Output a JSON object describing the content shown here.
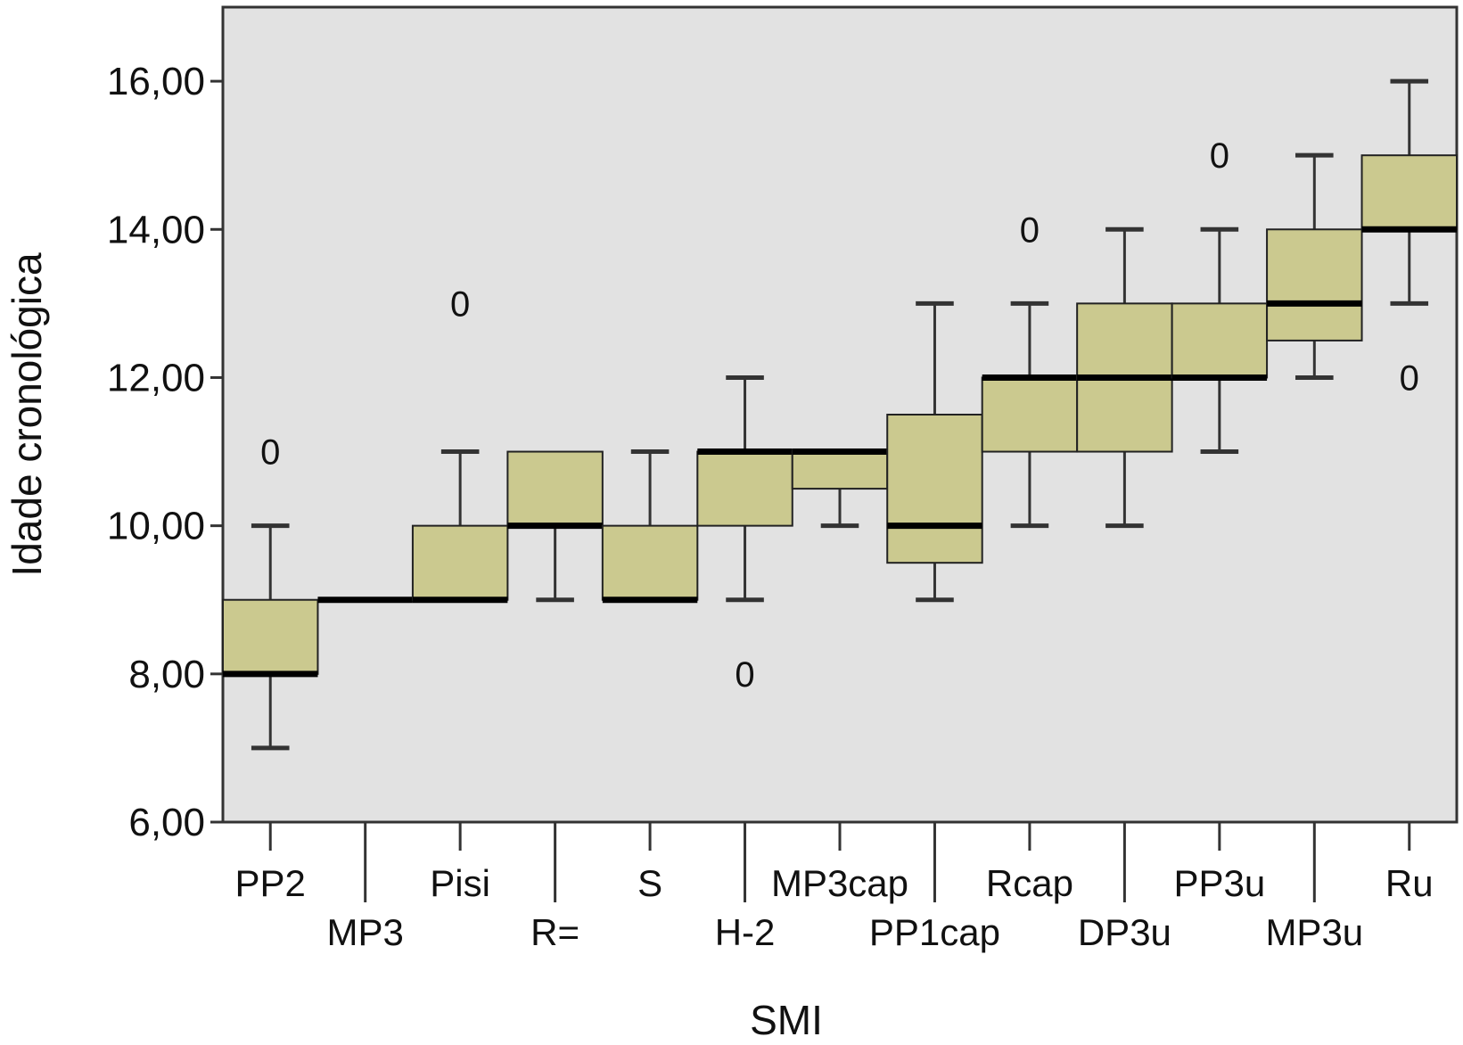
{
  "chart_data": {
    "type": "boxplot",
    "xlabel": "SMI",
    "ylabel": "Idade cronológica",
    "ylim": [
      6,
      17
    ],
    "yticks": [
      6,
      8,
      10,
      12,
      14,
      16
    ],
    "ytick_labels": [
      "6,00",
      "8,00",
      "10,00",
      "12,00",
      "14,00",
      "16,00"
    ],
    "grid": false,
    "categories": [
      "PP2",
      "MP3",
      "Pisi",
      "R=",
      "S",
      "H-2",
      "MP3cap",
      "PP1cap",
      "Rcap",
      "DP3u",
      "PP3u",
      "MP3u",
      "Ru"
    ],
    "boxes": [
      {
        "category": "PP2",
        "whisker_low": 7,
        "q1": 8,
        "median": 8,
        "q3": 9,
        "whisker_high": 10,
        "outliers": [
          11
        ]
      },
      {
        "category": "MP3",
        "whisker_low": 9,
        "q1": 9,
        "median": 9,
        "q3": 9,
        "whisker_high": 9,
        "outliers": []
      },
      {
        "category": "Pisi",
        "whisker_low": 9,
        "q1": 9,
        "median": 9,
        "q3": 10,
        "whisker_high": 11,
        "outliers": [
          13
        ]
      },
      {
        "category": "R=",
        "whisker_low": 9,
        "q1": 10,
        "median": 10,
        "q3": 11,
        "whisker_high": 11,
        "outliers": []
      },
      {
        "category": "S",
        "whisker_low": 9,
        "q1": 9,
        "median": 9,
        "q3": 10,
        "whisker_high": 11,
        "outliers": []
      },
      {
        "category": "H-2",
        "whisker_low": 9,
        "q1": 10,
        "median": 11,
        "q3": 11,
        "whisker_high": 12,
        "outliers": [
          8
        ]
      },
      {
        "category": "MP3cap",
        "whisker_low": 10,
        "q1": 10.5,
        "median": 11,
        "q3": 11,
        "whisker_high": 11,
        "outliers": []
      },
      {
        "category": "PP1cap",
        "whisker_low": 9,
        "q1": 9.5,
        "median": 10,
        "q3": 11.5,
        "whisker_high": 13,
        "outliers": []
      },
      {
        "category": "Rcap",
        "whisker_low": 10,
        "q1": 11,
        "median": 12,
        "q3": 12,
        "whisker_high": 13,
        "outliers": [
          14
        ]
      },
      {
        "category": "DP3u",
        "whisker_low": 10,
        "q1": 11,
        "median": 12,
        "q3": 13,
        "whisker_high": 14,
        "outliers": []
      },
      {
        "category": "PP3u",
        "whisker_low": 11,
        "q1": 12,
        "median": 12,
        "q3": 13,
        "whisker_high": 14,
        "outliers": [
          15
        ]
      },
      {
        "category": "MP3u",
        "whisker_low": 12,
        "q1": 12.5,
        "median": 13,
        "q3": 14,
        "whisker_high": 15,
        "outliers": []
      },
      {
        "category": "Ru",
        "whisker_low": 13,
        "q1": 14,
        "median": 14,
        "q3": 15,
        "whisker_high": 16,
        "outliers": [
          12
        ]
      }
    ],
    "outlier_marker": "0",
    "colors": {
      "plot_background": "#e2e2e2",
      "box_fill": "#cbc98f",
      "box_stroke": "#222222",
      "median": "#000000",
      "whisker": "#333333",
      "frame": "#333333"
    }
  }
}
